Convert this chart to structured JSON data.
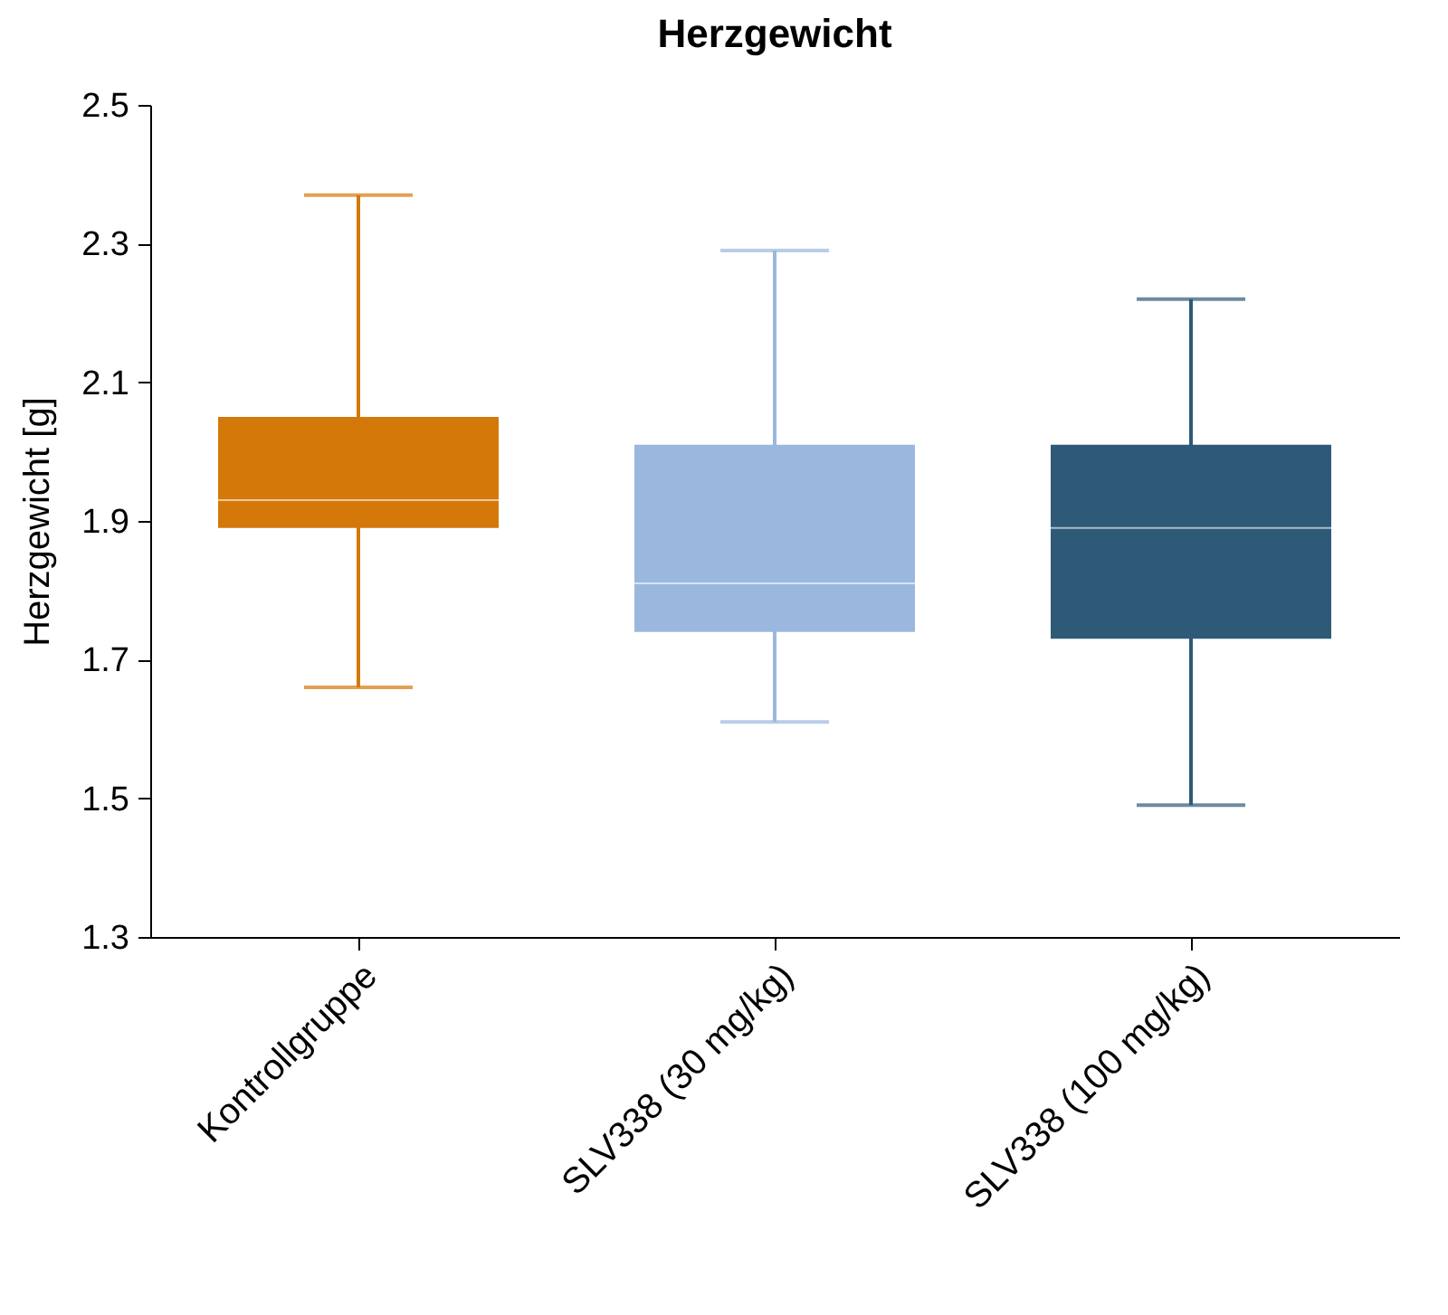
{
  "chart_data": {
    "type": "box",
    "title": "Herzgewicht",
    "ylabel": "Herzgewicht [g]",
    "categories": [
      "Kontrollgruppe",
      "SLV338 (30 mg/kg)",
      "SLV338 (100 mg/kg)"
    ],
    "colors": [
      "#d4780a",
      "#9ab8de",
      "#2e5a78"
    ],
    "boxes": [
      {
        "low": 1.66,
        "q1": 1.89,
        "median": 1.93,
        "q3": 2.05,
        "high": 2.37
      },
      {
        "low": 1.61,
        "q1": 1.74,
        "median": 1.81,
        "q3": 2.01,
        "high": 2.29
      },
      {
        "low": 1.49,
        "q1": 1.73,
        "median": 1.89,
        "q3": 2.01,
        "high": 2.22
      }
    ],
    "ylim": [
      1.3,
      2.5
    ],
    "yticks": [
      1.3,
      1.5,
      1.7,
      1.9,
      2.1,
      2.3,
      2.5
    ],
    "grid": false
  }
}
